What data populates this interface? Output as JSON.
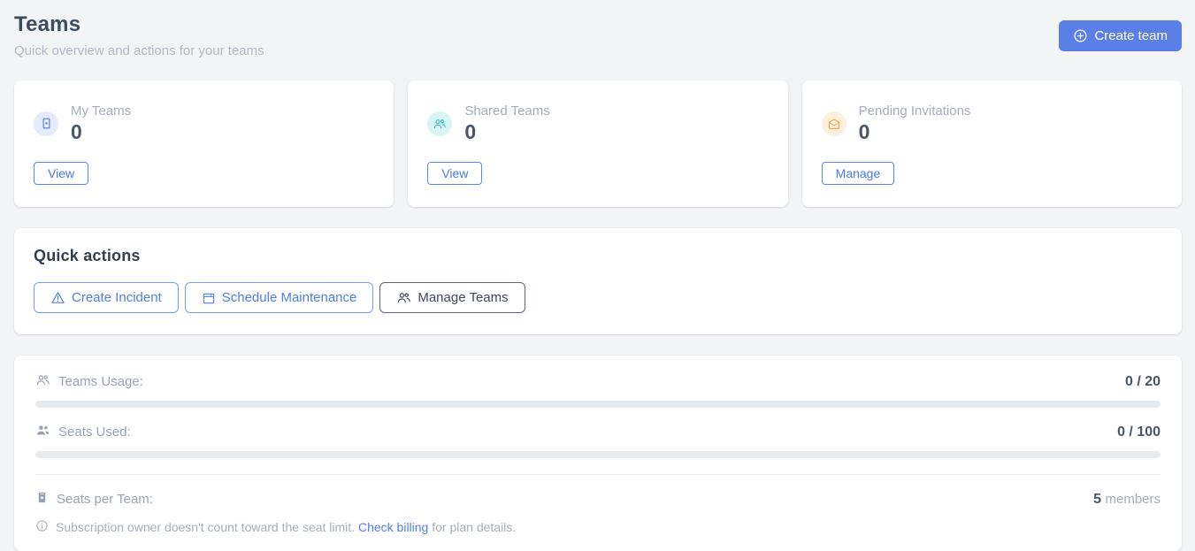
{
  "page": {
    "title": "Teams",
    "subtitle": "Quick overview and actions for your teams"
  },
  "header": {
    "create_team_label": "Create team"
  },
  "colors": {
    "primary_button_blue": "#5a80e8",
    "link_blue": "#4f7fe8",
    "my_teams_icon": "#4b7be8",
    "shared_teams_icon": "#3cc3cc",
    "pending_invitations_icon": "#f0a94a",
    "progress_track": "#e8ebee",
    "page_background": "#f2f4f6"
  },
  "stat_cards": [
    {
      "label": "My Teams",
      "value": "0",
      "action_label": "View",
      "icon": "badge-icon"
    },
    {
      "label": "Shared Teams",
      "value": "0",
      "action_label": "View",
      "icon": "people-icon"
    },
    {
      "label": "Pending Invitations",
      "value": "0",
      "action_label": "Manage",
      "icon": "mail-open-icon"
    }
  ],
  "quick_actions": {
    "title": "Quick actions",
    "buttons": [
      {
        "label": "Create Incident",
        "icon": "warning-triangle-icon"
      },
      {
        "label": "Schedule Maintenance",
        "icon": "calendar-icon"
      },
      {
        "label": "Manage Teams",
        "icon": "people-icon"
      }
    ]
  },
  "usage": {
    "teams_usage": {
      "label": "Teams Usage:",
      "value": "0 / 20",
      "percent": 0
    },
    "seats_used": {
      "label": "Seats Used:",
      "value": "0 / 100",
      "percent": 0
    },
    "seats_per_team": {
      "label": "Seats per Team:",
      "value": "5",
      "suffix": "members"
    },
    "note": {
      "text": "Subscription owner doesn't count toward the seat limit.",
      "link": "Check billing",
      "suffix": "for plan details."
    }
  }
}
